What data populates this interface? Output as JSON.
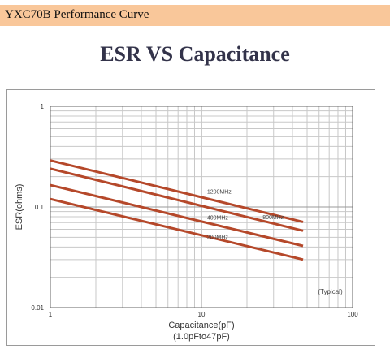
{
  "header": {
    "title": "YXC70B Performance Curve",
    "background": "#f9c79a"
  },
  "chart_data": {
    "type": "line",
    "title": "ESR VS Capacitance",
    "xlabel": "Capacitance(pF)",
    "xlabel_sub": "(1.0pFto47pF)",
    "ylabel": "ESR(ohms)",
    "x_scale": "log",
    "y_scale": "log",
    "xlim": [
      1,
      100
    ],
    "ylim": [
      0.01,
      1
    ],
    "x_ticks": [
      "1",
      "10",
      "100"
    ],
    "y_ticks": [
      "0.01",
      "0.1",
      "1"
    ],
    "grid": true,
    "annotation": "(Typical)",
    "line_color": "#b5482a",
    "series": [
      {
        "name": "1200MHz",
        "x": [
          1,
          47
        ],
        "y": [
          0.29,
          0.071
        ]
      },
      {
        "name": "800MHz",
        "x": [
          1,
          47
        ],
        "y": [
          0.24,
          0.058
        ]
      },
      {
        "name": "400MHz",
        "x": [
          1,
          47
        ],
        "y": [
          0.165,
          0.041
        ]
      },
      {
        "name": "200MHz",
        "x": [
          1,
          47
        ],
        "y": [
          0.12,
          0.03
        ]
      }
    ]
  }
}
